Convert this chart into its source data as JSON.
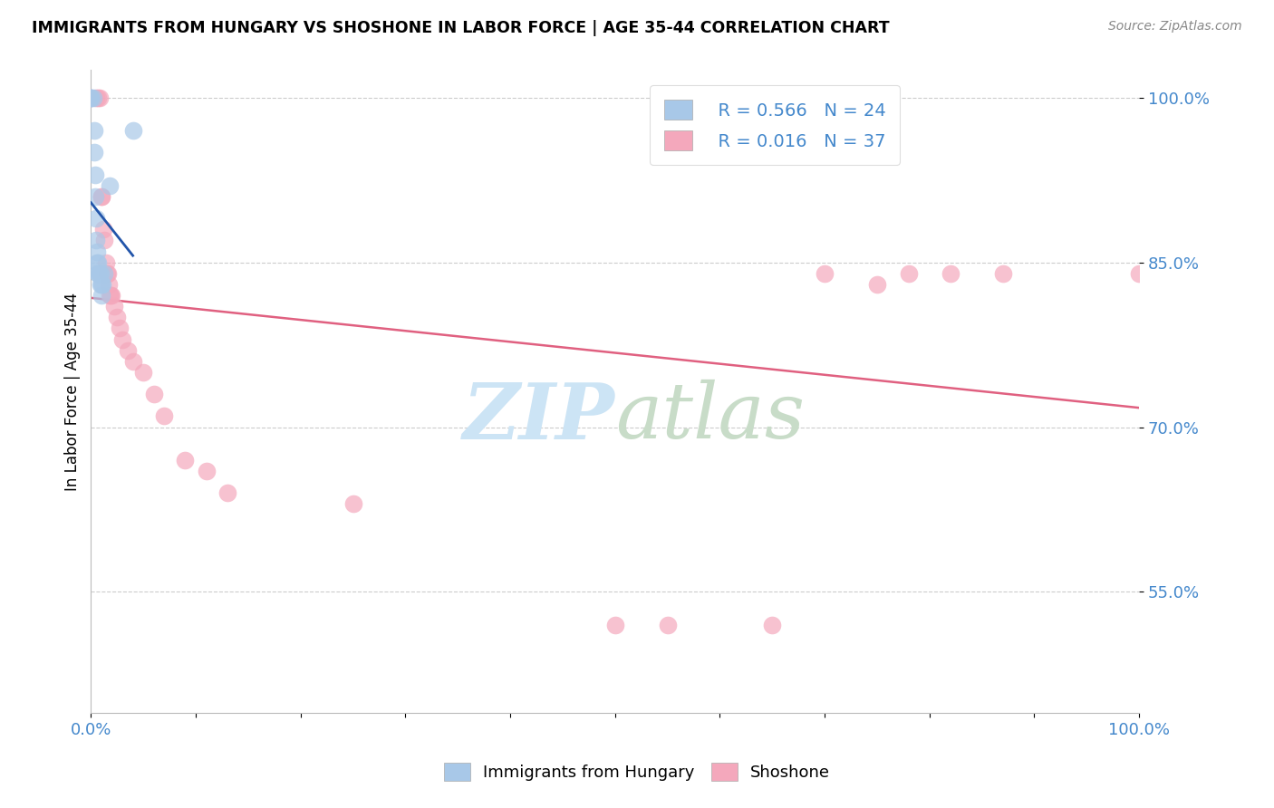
{
  "title": "IMMIGRANTS FROM HUNGARY VS SHOSHONE IN LABOR FORCE | AGE 35-44 CORRELATION CHART",
  "source": "Source: ZipAtlas.com",
  "ylabel": "In Labor Force | Age 35-44",
  "ytick_labels": [
    "100.0%",
    "85.0%",
    "70.0%",
    "55.0%"
  ],
  "ytick_values": [
    1.0,
    0.85,
    0.7,
    0.55
  ],
  "xlim": [
    0.0,
    1.0
  ],
  "ylim": [
    0.44,
    1.025
  ],
  "hungary_R": 0.566,
  "hungary_N": 24,
  "shoshone_R": 0.016,
  "shoshone_N": 37,
  "hungary_color": "#a8c8e8",
  "shoshone_color": "#f4a8bc",
  "hungary_line_color": "#2255aa",
  "shoshone_line_color": "#e06080",
  "hungary_x": [
    0.0,
    0.0,
    0.0,
    0.002,
    0.003,
    0.003,
    0.004,
    0.004,
    0.005,
    0.005,
    0.006,
    0.006,
    0.007,
    0.007,
    0.007,
    0.008,
    0.009,
    0.009,
    0.01,
    0.01,
    0.011,
    0.013,
    0.018,
    0.04
  ],
  "hungary_y": [
    1.0,
    1.0,
    1.0,
    1.0,
    0.97,
    0.95,
    0.93,
    0.91,
    0.89,
    0.87,
    0.86,
    0.85,
    0.85,
    0.84,
    0.84,
    0.84,
    0.84,
    0.83,
    0.83,
    0.82,
    0.83,
    0.84,
    0.92,
    0.97
  ],
  "shoshone_x": [
    0.0,
    0.005,
    0.007,
    0.008,
    0.01,
    0.01,
    0.012,
    0.013,
    0.014,
    0.015,
    0.016,
    0.017,
    0.018,
    0.019,
    0.02,
    0.022,
    0.025,
    0.027,
    0.03,
    0.035,
    0.04,
    0.05,
    0.06,
    0.07,
    0.09,
    0.11,
    0.13,
    0.25,
    0.5,
    0.55,
    0.65,
    0.7,
    0.75,
    0.78,
    0.82,
    0.87,
    1.0
  ],
  "shoshone_y": [
    1.0,
    1.0,
    1.0,
    1.0,
    0.91,
    0.91,
    0.88,
    0.87,
    0.85,
    0.84,
    0.84,
    0.83,
    0.82,
    0.82,
    0.82,
    0.81,
    0.8,
    0.79,
    0.78,
    0.77,
    0.76,
    0.75,
    0.73,
    0.71,
    0.67,
    0.66,
    0.64,
    0.63,
    0.52,
    0.52,
    0.52,
    0.84,
    0.83,
    0.84,
    0.84,
    0.84,
    0.84
  ],
  "hungary_line_x": [
    0.0,
    0.04
  ],
  "shoshone_line_x": [
    0.0,
    1.0
  ],
  "watermark_zip_color": "#cce4f5",
  "watermark_atlas_color": "#c8dcc8",
  "background_color": "#ffffff",
  "grid_color": "#cccccc"
}
